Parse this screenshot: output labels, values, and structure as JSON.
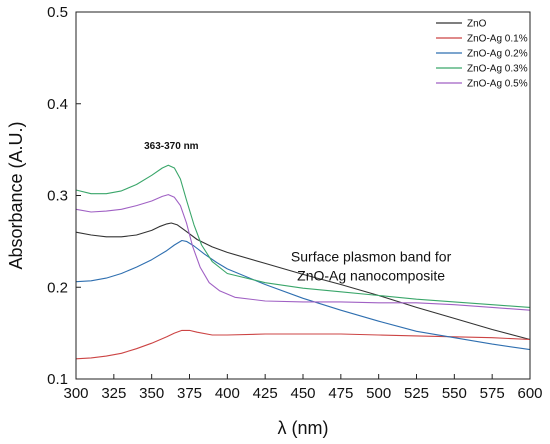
{
  "chart_data": {
    "type": "line",
    "xlabel": "λ (nm)",
    "ylabel": "Absorbance (A.U.)",
    "xlim": [
      300,
      600
    ],
    "ylim": [
      0.1,
      0.5
    ],
    "x_ticks": [
      300,
      325,
      350,
      375,
      400,
      425,
      450,
      475,
      500,
      525,
      550,
      575,
      600
    ],
    "y_ticks": [
      0.1,
      0.2,
      0.3,
      0.4,
      0.5
    ],
    "x_tick_labels": [
      "300",
      "325",
      "350",
      "375",
      "400",
      "425",
      "450",
      "475",
      "500",
      "525",
      "550",
      "575",
      "600"
    ],
    "y_tick_labels": [
      "0.1",
      "0.2",
      "0.3",
      "0.4",
      "0.5"
    ],
    "grid": false,
    "legend_position": "top-right",
    "annotations": [
      {
        "text": "363-370 nm"
      },
      {
        "lines": [
          "Surface plasmon band for",
          "ZnO-Ag nanocomposite"
        ]
      }
    ],
    "series": [
      {
        "name": "ZnO",
        "color": "#333333",
        "points": [
          [
            300,
            0.26
          ],
          [
            310,
            0.257
          ],
          [
            320,
            0.255
          ],
          [
            330,
            0.255
          ],
          [
            340,
            0.257
          ],
          [
            350,
            0.262
          ],
          [
            355,
            0.266
          ],
          [
            360,
            0.269
          ],
          [
            363,
            0.27
          ],
          [
            367,
            0.268
          ],
          [
            372,
            0.262
          ],
          [
            380,
            0.252
          ],
          [
            390,
            0.244
          ],
          [
            400,
            0.238
          ],
          [
            425,
            0.226
          ],
          [
            450,
            0.214
          ],
          [
            475,
            0.203
          ],
          [
            500,
            0.191
          ],
          [
            525,
            0.178
          ],
          [
            550,
            0.166
          ],
          [
            575,
            0.154
          ],
          [
            600,
            0.143
          ]
        ]
      },
      {
        "name": "ZnO-Ag 0.1%",
        "color": "#cc4444",
        "points": [
          [
            300,
            0.122
          ],
          [
            310,
            0.123
          ],
          [
            320,
            0.125
          ],
          [
            330,
            0.128
          ],
          [
            340,
            0.133
          ],
          [
            350,
            0.139
          ],
          [
            360,
            0.146
          ],
          [
            365,
            0.15
          ],
          [
            370,
            0.153
          ],
          [
            375,
            0.153
          ],
          [
            380,
            0.151
          ],
          [
            390,
            0.148
          ],
          [
            400,
            0.148
          ],
          [
            425,
            0.149
          ],
          [
            450,
            0.149
          ],
          [
            475,
            0.149
          ],
          [
            500,
            0.148
          ],
          [
            525,
            0.147
          ],
          [
            550,
            0.146
          ],
          [
            575,
            0.145
          ],
          [
            600,
            0.143
          ]
        ]
      },
      {
        "name": "ZnO-Ag 0.2%",
        "color": "#2f6fb0",
        "points": [
          [
            300,
            0.206
          ],
          [
            310,
            0.207
          ],
          [
            320,
            0.21
          ],
          [
            330,
            0.215
          ],
          [
            340,
            0.222
          ],
          [
            350,
            0.23
          ],
          [
            360,
            0.24
          ],
          [
            365,
            0.246
          ],
          [
            370,
            0.251
          ],
          [
            373,
            0.25
          ],
          [
            378,
            0.245
          ],
          [
            385,
            0.236
          ],
          [
            393,
            0.227
          ],
          [
            400,
            0.22
          ],
          [
            425,
            0.203
          ],
          [
            450,
            0.188
          ],
          [
            475,
            0.175
          ],
          [
            500,
            0.163
          ],
          [
            525,
            0.152
          ],
          [
            550,
            0.145
          ],
          [
            575,
            0.138
          ],
          [
            600,
            0.132
          ]
        ]
      },
      {
        "name": "ZnO-Ag 0.3%",
        "color": "#3aa66a",
        "points": [
          [
            300,
            0.306
          ],
          [
            310,
            0.302
          ],
          [
            320,
            0.302
          ],
          [
            330,
            0.305
          ],
          [
            340,
            0.312
          ],
          [
            350,
            0.322
          ],
          [
            357,
            0.33
          ],
          [
            361,
            0.333
          ],
          [
            365,
            0.33
          ],
          [
            369,
            0.318
          ],
          [
            373,
            0.295
          ],
          [
            378,
            0.268
          ],
          [
            383,
            0.246
          ],
          [
            390,
            0.228
          ],
          [
            400,
            0.215
          ],
          [
            425,
            0.205
          ],
          [
            450,
            0.199
          ],
          [
            475,
            0.195
          ],
          [
            500,
            0.191
          ],
          [
            525,
            0.187
          ],
          [
            550,
            0.184
          ],
          [
            575,
            0.181
          ],
          [
            600,
            0.178
          ]
        ]
      },
      {
        "name": "ZnO-Ag 0.5%",
        "color": "#a061c4",
        "points": [
          [
            300,
            0.285
          ],
          [
            310,
            0.282
          ],
          [
            320,
            0.283
          ],
          [
            330,
            0.285
          ],
          [
            340,
            0.289
          ],
          [
            350,
            0.294
          ],
          [
            357,
            0.299
          ],
          [
            361,
            0.301
          ],
          [
            365,
            0.298
          ],
          [
            369,
            0.289
          ],
          [
            373,
            0.27
          ],
          [
            377,
            0.245
          ],
          [
            382,
            0.222
          ],
          [
            388,
            0.205
          ],
          [
            395,
            0.196
          ],
          [
            405,
            0.189
          ],
          [
            425,
            0.185
          ],
          [
            450,
            0.184
          ],
          [
            475,
            0.184
          ],
          [
            500,
            0.183
          ],
          [
            525,
            0.183
          ],
          [
            550,
            0.181
          ],
          [
            575,
            0.178
          ],
          [
            600,
            0.175
          ]
        ]
      }
    ]
  }
}
